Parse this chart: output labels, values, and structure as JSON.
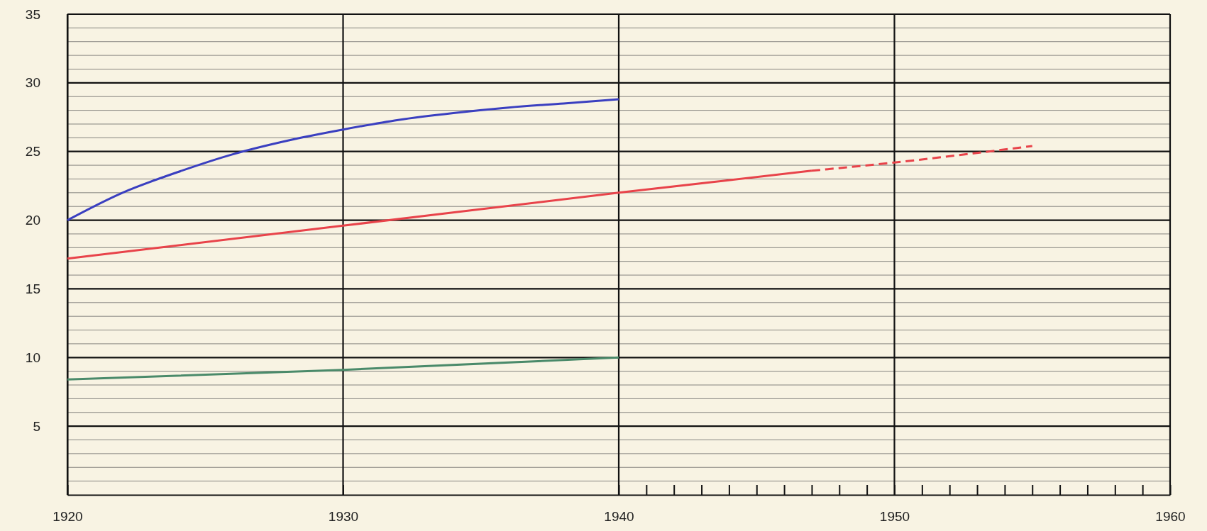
{
  "chart_data": {
    "type": "line",
    "xlim": [
      1920,
      1960
    ],
    "ylim": [
      0,
      35
    ],
    "xticks": [
      1920,
      1930,
      1940,
      {
        "value": 1941,
        "label": null
      },
      {
        "value": 1942,
        "label": null
      },
      {
        "value": 1943,
        "label": null
      },
      {
        "value": 1944,
        "label": null
      },
      {
        "value": 1945,
        "label": null
      },
      {
        "value": 1946,
        "label": null
      },
      {
        "value": 1947,
        "label": null
      },
      {
        "value": 1948,
        "label": null
      },
      {
        "value": 1949,
        "label": null
      },
      1950,
      {
        "value": 1951,
        "label": null
      },
      {
        "value": 1952,
        "label": null
      },
      {
        "value": 1953,
        "label": null
      },
      {
        "value": 1954,
        "label": null
      },
      {
        "value": 1955,
        "label": null
      },
      {
        "value": 1956,
        "label": null
      },
      {
        "value": 1957,
        "label": null
      },
      {
        "value": 1958,
        "label": null
      },
      {
        "value": 1959,
        "label": null
      },
      1960
    ],
    "yticks": [
      {
        "value": 1,
        "label": null
      },
      {
        "value": 2,
        "label": null
      },
      {
        "value": 3,
        "label": null
      },
      {
        "value": 4,
        "label": null
      },
      5,
      {
        "value": 6,
        "label": null
      },
      {
        "value": 7,
        "label": null
      },
      {
        "value": 8,
        "label": null
      },
      {
        "value": 9,
        "label": null
      },
      10,
      {
        "value": 11,
        "label": null
      },
      {
        "value": 12,
        "label": null
      },
      {
        "value": 13,
        "label": null
      },
      {
        "value": 14,
        "label": null
      },
      15,
      {
        "value": 16,
        "label": null
      },
      {
        "value": 17,
        "label": null
      },
      {
        "value": 18,
        "label": null
      },
      {
        "value": 19,
        "label": null
      },
      20,
      {
        "value": 21,
        "label": null
      },
      {
        "value": 22,
        "label": null
      },
      {
        "value": 23,
        "label": null
      },
      {
        "value": 24,
        "label": null
      },
      25,
      {
        "value": 26,
        "label": null
      },
      {
        "value": 27,
        "label": null
      },
      {
        "value": 28,
        "label": null
      },
      {
        "value": 29,
        "label": null
      },
      30,
      {
        "value": 31,
        "label": null
      },
      {
        "value": 32,
        "label": null
      },
      {
        "value": 33,
        "label": null
      },
      {
        "value": 34,
        "label": null
      },
      35
    ],
    "grid": true,
    "marker": "none",
    "series": [
      {
        "color": "#3a3fc0",
        "line_style": "solid",
        "x": [
          1920,
          1922,
          1924,
          1926,
          1928,
          1930,
          1932,
          1934,
          1936,
          1938,
          1940
        ],
        "values": [
          20.0,
          22.0,
          23.5,
          24.8,
          25.8,
          26.6,
          27.3,
          27.8,
          28.2,
          28.5,
          28.8
        ]
      },
      {
        "color": "#e8434a",
        "line_style": "solid",
        "x": [
          1920,
          1930,
          1940,
          1947
        ],
        "values": [
          17.2,
          19.6,
          22.0,
          23.6
        ]
      },
      {
        "color": "#e8434a",
        "line_style": "dashed",
        "x": [
          1947,
          1950,
          1955
        ],
        "values": [
          23.6,
          24.2,
          25.4
        ]
      },
      {
        "color": "#4a8a6a",
        "line_style": "solid",
        "x": [
          1920,
          1930,
          1940
        ],
        "values": [
          8.4,
          9.1,
          10.0
        ]
      }
    ]
  }
}
